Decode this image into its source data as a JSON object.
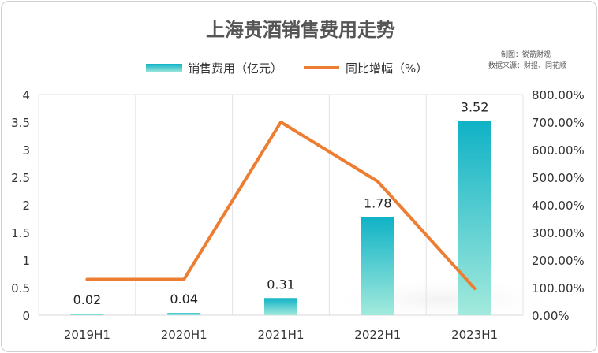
{
  "chart_data": {
    "type": "bar",
    "title": "上海贵酒销售费用走势",
    "categories": [
      "2019H1",
      "2020H1",
      "2021H1",
      "2022H1",
      "2023H1"
    ],
    "series": [
      {
        "name": "销售费用（亿元）",
        "type": "bar",
        "axis": "left",
        "values": [
          0.02,
          0.04,
          0.31,
          1.78,
          3.52
        ],
        "labels": [
          "0.02",
          "0.04",
          "0.31",
          "1.78",
          "3.52"
        ]
      },
      {
        "name": "同比增幅（%）",
        "type": "line",
        "axis": "right",
        "values": [
          130,
          130,
          700,
          485,
          97
        ]
      }
    ],
    "y_left": {
      "min": 0,
      "max": 4,
      "ticks": [
        "0",
        "0.5",
        "1",
        "1.5",
        "2",
        "2.5",
        "3",
        "3.5",
        "4"
      ]
    },
    "y_right": {
      "min": 0,
      "max": 800,
      "ticks": [
        "0.00%",
        "100.00%",
        "200.00%",
        "300.00%",
        "400.00%",
        "500.00%",
        "600.00%",
        "700.00%",
        "800.00%"
      ]
    },
    "grid": "vertical",
    "legend": "top-center",
    "notes": [
      "制图：锐箭财观",
      "数据来源：财报、同花顺"
    ],
    "colors": {
      "bar_top": "#0fb2c6",
      "bar_bottom": "#a3eadc",
      "line": "#ed7d31",
      "grid": "#e3e3e3"
    }
  }
}
